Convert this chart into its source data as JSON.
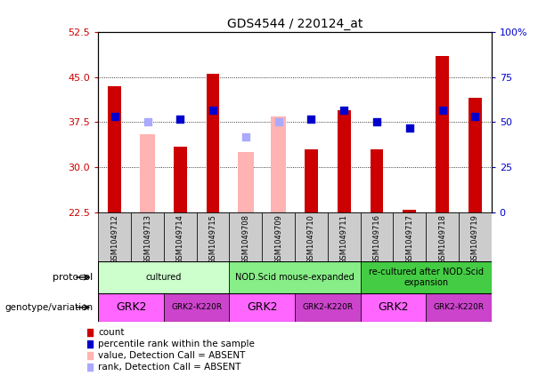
{
  "title": "GDS4544 / 220124_at",
  "samples": [
    "GSM1049712",
    "GSM1049713",
    "GSM1049714",
    "GSM1049715",
    "GSM1049708",
    "GSM1049709",
    "GSM1049710",
    "GSM1049711",
    "GSM1049716",
    "GSM1049717",
    "GSM1049718",
    "GSM1049719"
  ],
  "ylim_left": [
    22.5,
    52.5
  ],
  "ylim_right": [
    0,
    100
  ],
  "yticks_left": [
    22.5,
    30,
    37.5,
    45,
    52.5
  ],
  "yticks_right": [
    0,
    25,
    50,
    75,
    100
  ],
  "count_values": [
    43.5,
    null,
    33.5,
    45.5,
    null,
    null,
    33.0,
    39.5,
    33.0,
    23.0,
    48.5,
    41.5
  ],
  "rank_values": [
    38.5,
    null,
    38.0,
    39.5,
    null,
    null,
    38.0,
    39.5,
    37.5,
    36.5,
    39.5,
    38.5
  ],
  "absent_count_values": [
    null,
    35.5,
    null,
    null,
    32.5,
    38.5,
    null,
    null,
    null,
    null,
    null,
    null
  ],
  "absent_rank_values": [
    null,
    37.5,
    null,
    null,
    35.0,
    37.5,
    null,
    null,
    null,
    null,
    null,
    null
  ],
  "bar_color_count": "#cc0000",
  "bar_color_absent": "#ffb3b3",
  "dot_color_rank": "#0000cc",
  "dot_color_absent_rank": "#aaaaff",
  "protocol_groups": [
    {
      "label": "cultured",
      "start": 0,
      "end": 4,
      "color": "#ccffcc"
    },
    {
      "label": "NOD.Scid mouse-expanded",
      "start": 4,
      "end": 8,
      "color": "#88ee88"
    },
    {
      "label": "re-cultured after NOD.Scid\nexpansion",
      "start": 8,
      "end": 12,
      "color": "#44cc44"
    }
  ],
  "genotype_groups": [
    {
      "label": "GRK2",
      "start": 0,
      "end": 2,
      "color": "#ff66ff"
    },
    {
      "label": "GRK2-K220R",
      "start": 2,
      "end": 4,
      "color": "#cc44cc"
    },
    {
      "label": "GRK2",
      "start": 4,
      "end": 6,
      "color": "#ff66ff"
    },
    {
      "label": "GRK2-K220R",
      "start": 6,
      "end": 8,
      "color": "#cc44cc"
    },
    {
      "label": "GRK2",
      "start": 8,
      "end": 10,
      "color": "#ff66ff"
    },
    {
      "label": "GRK2-K220R",
      "start": 10,
      "end": 12,
      "color": "#cc44cc"
    }
  ],
  "bar_width": 0.4,
  "dot_size": 35,
  "sample_box_color": "#cccccc",
  "left_axis_color": "#cc0000",
  "right_axis_color": "#0000cc",
  "legend_items": [
    {
      "color": "#cc0000",
      "label": "count"
    },
    {
      "color": "#0000cc",
      "label": "percentile rank within the sample"
    },
    {
      "color": "#ffb3b3",
      "label": "value, Detection Call = ABSENT"
    },
    {
      "color": "#aaaaff",
      "label": "rank, Detection Call = ABSENT"
    }
  ]
}
